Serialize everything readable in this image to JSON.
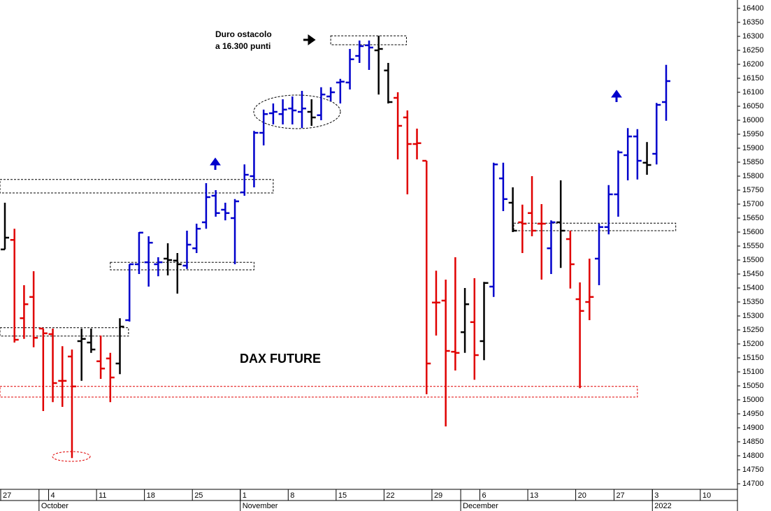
{
  "chart_data": {
    "type": "ohlc",
    "title": "DAX FUTURE",
    "note": [
      "Duro ostacolo",
      "a 16.300 punti"
    ],
    "x": [
      0,
      1,
      2,
      3,
      4,
      5,
      6,
      7,
      8,
      9,
      10,
      11,
      12,
      13,
      14,
      15,
      16,
      17,
      18,
      19,
      20,
      21,
      22,
      23,
      24,
      25,
      26,
      27,
      28,
      29,
      30,
      31,
      32,
      33,
      34,
      35,
      36,
      37,
      38,
      39,
      40,
      41,
      42,
      43,
      44,
      45,
      46,
      47,
      48,
      49,
      50,
      51,
      52,
      53,
      54,
      55,
      56,
      57,
      58,
      59,
      60,
      61,
      62,
      63,
      64,
      65,
      66,
      67,
      68,
      69
    ],
    "high": [
      15705,
      15612,
      15410,
      15460,
      15255,
      15255,
      15192,
      15180,
      15255,
      15255,
      15230,
      15168,
      15292,
      15485,
      15600,
      15585,
      15510,
      15560,
      15525,
      15605,
      15630,
      15775,
      15750,
      15705,
      15718,
      15842,
      15962,
      16038,
      16060,
      16075,
      16085,
      16105,
      16075,
      16118,
      16118,
      16148,
      16255,
      16285,
      16285,
      16302,
      16205,
      16100,
      16035,
      15970,
      15855,
      15462,
      15430,
      15510,
      15400,
      15435,
      15422,
      15848,
      15848,
      15760,
      15698,
      15800,
      15700,
      15642,
      15785,
      15605,
      15420,
      15505,
      15630,
      15768,
      15892,
      15972,
      15968,
      15922,
      16062,
      16198
    ],
    "low": [
      15538,
      15205,
      15218,
      15188,
      14960,
      14992,
      14975,
      14792,
      15068,
      15168,
      15075,
      14992,
      15092,
      15280,
      15450,
      15405,
      15442,
      15445,
      15380,
      15468,
      15525,
      15612,
      15655,
      15642,
      15485,
      15730,
      15760,
      15910,
      15985,
      15985,
      15985,
      15972,
      15980,
      16000,
      16068,
      16060,
      16110,
      16205,
      16180,
      16092,
      16060,
      15860,
      15735,
      15860,
      15020,
      15230,
      14905,
      15105,
      15168,
      15072,
      15142,
      15368,
      15675,
      15600,
      15525,
      15585,
      15430,
      15450,
      15472,
      15398,
      15042,
      15285,
      15410,
      15592,
      15655,
      15785,
      15788,
      15805,
      15842,
      15998
    ],
    "open": [
      15538,
      15572,
      15292,
      15368,
      15255,
      15235,
      15068,
      15155,
      15210,
      15205,
      15138,
      15148,
      15130,
      15285,
      15485,
      15492,
      15485,
      15505,
      15498,
      15480,
      15542,
      15635,
      15730,
      15680,
      15650,
      15742,
      15800,
      15955,
      16025,
      16022,
      16042,
      16030,
      16030,
      16018,
      16085,
      16135,
      16135,
      16230,
      16268,
      16250,
      16178,
      16080,
      16010,
      15915,
      15855,
      15348,
      15355,
      15172,
      15242,
      15278,
      15210,
      15405,
      15792,
      15705,
      15635,
      15668,
      15630,
      15542,
      15635,
      15575,
      15360,
      15350,
      15505,
      15618,
      15735,
      15875,
      15942,
      15848,
      15880,
      16065
    ],
    "close": [
      15580,
      15215,
      15342,
      15222,
      15238,
      15060,
      15068,
      15048,
      15218,
      15180,
      15112,
      15080,
      15262,
      15485,
      15598,
      15562,
      15492,
      15500,
      15485,
      15555,
      15612,
      15725,
      15668,
      15668,
      15710,
      15805,
      15955,
      16022,
      16030,
      16038,
      16035,
      16042,
      16010,
      16092,
      16100,
      16138,
      16218,
      16265,
      16260,
      16255,
      16065,
      15980,
      15915,
      15918,
      15130,
      15348,
      15175,
      15168,
      15342,
      15160,
      15418,
      15842,
      15718,
      15605,
      15630,
      15605,
      15630,
      15635,
      15605,
      15485,
      15318,
      15368,
      15618,
      15735,
      15885,
      15942,
      15855,
      15840,
      16055,
      16140
    ],
    "colors": [
      "#000000",
      "#e00000",
      "#e00000",
      "#e00000",
      "#e00000",
      "#e00000",
      "#e00000",
      "#e00000",
      "#000000",
      "#000000",
      "#e00000",
      "#e00000",
      "#000000",
      "#0000cc",
      "#0000cc",
      "#0000cc",
      "#0000cc",
      "#000000",
      "#000000",
      "#0000cc",
      "#0000cc",
      "#0000cc",
      "#0000cc",
      "#0000cc",
      "#0000cc",
      "#0000cc",
      "#0000cc",
      "#0000cc",
      "#0000cc",
      "#0000cc",
      "#0000cc",
      "#0000cc",
      "#000000",
      "#0000cc",
      "#0000cc",
      "#0000cc",
      "#0000cc",
      "#0000cc",
      "#0000cc",
      "#000000",
      "#000000",
      "#e00000",
      "#e00000",
      "#e00000",
      "#e00000",
      "#e00000",
      "#e00000",
      "#e00000",
      "#000000",
      "#e00000",
      "#000000",
      "#0000cc",
      "#0000cc",
      "#000000",
      "#e00000",
      "#e00000",
      "#e00000",
      "#0000cc",
      "#000000",
      "#e00000",
      "#e00000",
      "#e00000",
      "#0000cc",
      "#0000cc",
      "#0000cc",
      "#0000cc",
      "#0000cc",
      "#000000",
      "#0000cc",
      "#0000cc"
    ],
    "zones": [
      {
        "x": [
          -0.51,
          28.0
        ],
        "y": [
          15740,
          15788
        ],
        "color": "#000000"
      },
      {
        "x": [
          11.0,
          26.0
        ],
        "y": [
          15465,
          15492
        ],
        "color": "#000000"
      },
      {
        "x": [
          -0.51,
          12.9
        ],
        "y": [
          15228,
          15258
        ],
        "color": "#000000"
      },
      {
        "x": [
          34.0,
          41.9
        ],
        "y": [
          16270,
          16302
        ],
        "color": "#000000"
      },
      {
        "x": [
          53.1,
          70.0
        ],
        "y": [
          15605,
          15632
        ],
        "color": "#000000"
      },
      {
        "x": [
          -0.51,
          66.0
        ],
        "y": [
          15010,
          15048
        ],
        "color": "#e00000"
      }
    ],
    "xlim": [
      -0.51,
      76.44
    ],
    "ylim": [
      14680,
      16430
    ],
    "xticks": [
      {
        "value": 0,
        "label": "27"
      },
      {
        "value": 5,
        "label": "4"
      },
      {
        "value": 10,
        "label": "11"
      },
      {
        "value": 15,
        "label": "18"
      },
      {
        "value": 20,
        "label": "25"
      },
      {
        "value": 25,
        "label": "1"
      },
      {
        "value": 30,
        "label": "8"
      },
      {
        "value": 35,
        "label": "15"
      },
      {
        "value": 40,
        "label": "22"
      },
      {
        "value": 45,
        "label": "29"
      },
      {
        "value": 50,
        "label": "6"
      },
      {
        "value": 55,
        "label": "13"
      },
      {
        "value": 60,
        "label": "20"
      },
      {
        "value": 64,
        "label": "27"
      },
      {
        "value": 68,
        "label": "3"
      },
      {
        "value": 73,
        "label": "10"
      }
    ],
    "month_ticks": [
      {
        "value": 4,
        "label": "October"
      },
      {
        "value": 25,
        "label": "November"
      },
      {
        "value": 48,
        "label": "December"
      },
      {
        "value": 68,
        "label": "2022"
      }
    ],
    "yticks": [
      14700,
      14750,
      14800,
      14850,
      14900,
      14950,
      15000,
      15050,
      15100,
      15150,
      15200,
      15250,
      15300,
      15350,
      15400,
      15450,
      15500,
      15550,
      15600,
      15650,
      15700,
      15750,
      15800,
      15850,
      15900,
      15950,
      16000,
      16050,
      16100,
      16150,
      16200,
      16250,
      16300,
      16350,
      16400
    ],
    "grid": false
  }
}
